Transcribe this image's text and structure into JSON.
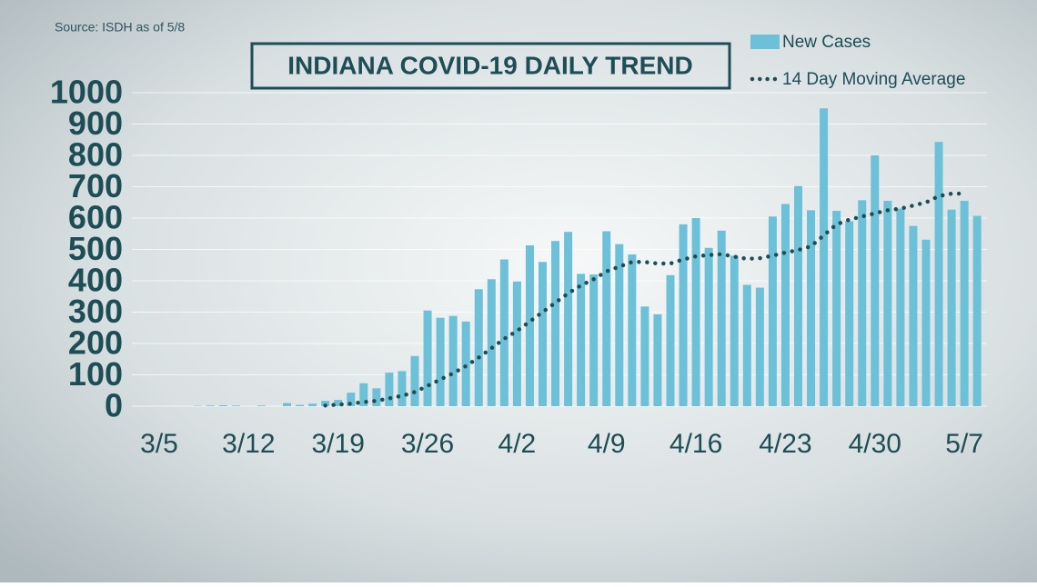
{
  "chart_data": {
    "type": "bar",
    "title": "INDIANA COVID-19 DAILY TREND",
    "source": "Source: ISDH as of 5/8",
    "categories": [
      "3/5",
      null,
      null,
      null,
      null,
      null,
      null,
      "3/12",
      null,
      null,
      null,
      null,
      null,
      null,
      "3/19",
      null,
      null,
      null,
      null,
      null,
      null,
      "3/26",
      null,
      null,
      null,
      null,
      null,
      null,
      "4/2",
      null,
      null,
      null,
      null,
      null,
      null,
      "4/9",
      null,
      null,
      null,
      null,
      null,
      null,
      "4/16",
      null,
      null,
      null,
      null,
      null,
      null,
      "4/23",
      null,
      null,
      null,
      null,
      null,
      null,
      "4/30",
      null,
      null,
      null,
      null,
      null,
      null,
      "5/7",
      null
    ],
    "series": [
      {
        "name": "New Cases",
        "type": "bar",
        "color": "#6cc0d8",
        "values": [
          0,
          0,
          0,
          1,
          2,
          3,
          2,
          0,
          2,
          0,
          10,
          4,
          8,
          17,
          20,
          43,
          73,
          57,
          107,
          112,
          160,
          305,
          282,
          288,
          270,
          373,
          405,
          468,
          398,
          513,
          460,
          527,
          556,
          422,
          420,
          558,
          517,
          484,
          318,
          293,
          418,
          580,
          600,
          505,
          560,
          480,
          387,
          378,
          605,
          645,
          702,
          625,
          950,
          623,
          590,
          657,
          800,
          655,
          630,
          575,
          531,
          843,
          627,
          655,
          607
        ]
      },
      {
        "name": "14 Day Moving Average",
        "type": "line",
        "color": "#1d4d55",
        "values": [
          null,
          null,
          null,
          null,
          null,
          null,
          null,
          null,
          null,
          null,
          null,
          null,
          null,
          2,
          5,
          8,
          13,
          17,
          25,
          33,
          45,
          65,
          85,
          105,
          128,
          155,
          185,
          215,
          240,
          270,
          300,
          330,
          360,
          385,
          405,
          430,
          445,
          460,
          460,
          455,
          455,
          468,
          478,
          482,
          485,
          477,
          470,
          472,
          480,
          490,
          498,
          510,
          545,
          580,
          595,
          605,
          615,
          625,
          630,
          640,
          650,
          670,
          678,
          678,
          null
        ]
      }
    ],
    "ylim": [
      0,
      1000
    ],
    "yticks": [
      0,
      100,
      200,
      300,
      400,
      500,
      600,
      700,
      800,
      900,
      1000
    ],
    "grid": true
  }
}
